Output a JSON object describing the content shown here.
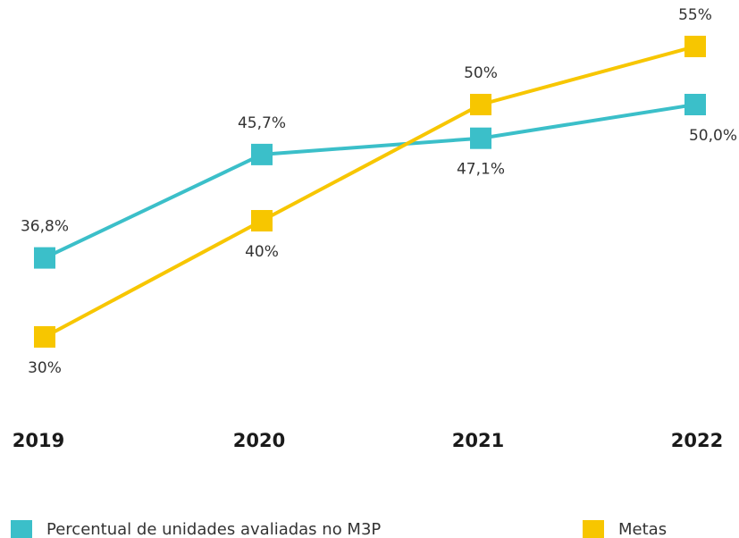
{
  "chart_data": {
    "type": "line",
    "categories": [
      "2019",
      "2020",
      "2021",
      "2022"
    ],
    "series": [
      {
        "name": "Percentual de unidades avaliadas no M3P",
        "color": "#3bbfc9",
        "values": [
          36.8,
          45.7,
          47.1,
          50.0
        ],
        "value_labels": [
          "36,8%",
          "45,7%",
          "47,1%",
          "50,0%"
        ]
      },
      {
        "name": "Metas",
        "color": "#f7c600",
        "values": [
          30,
          40,
          50,
          55
        ],
        "value_labels": [
          "30%",
          "40%",
          "50%",
          "55%"
        ]
      }
    ],
    "legend": "bottom"
  }
}
